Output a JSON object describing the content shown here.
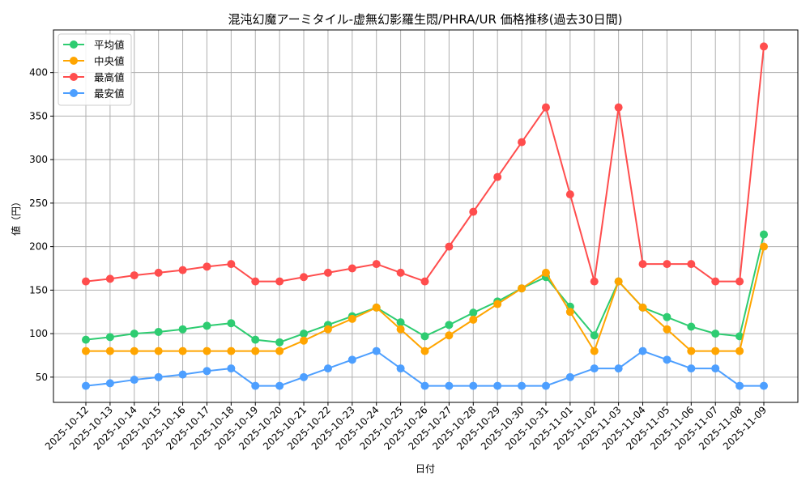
{
  "chart_data": {
    "type": "line",
    "title": "混沌幻魔アーミタイル-虚無幻影羅生悶/PHRA/UR 価格推移(過去30日間)",
    "xlabel": "日付",
    "ylabel": "値（円）",
    "ylim": [
      21,
      449
    ],
    "yticks": [
      50,
      100,
      150,
      200,
      250,
      300,
      350,
      400
    ],
    "grid": true,
    "legend_position": "upper left",
    "x": [
      "2025-10-12",
      "2025-10-13",
      "2025-10-14",
      "2025-10-15",
      "2025-10-16",
      "2025-10-17",
      "2025-10-18",
      "2025-10-19",
      "2025-10-20",
      "2025-10-21",
      "2025-10-22",
      "2025-10-23",
      "2025-10-24",
      "2025-10-25",
      "2025-10-26",
      "2025-10-27",
      "2025-10-28",
      "2025-10-29",
      "2025-10-30",
      "2025-10-31",
      "2025-11-01",
      "2025-11-02",
      "2025-11-03",
      "2025-11-04",
      "2025-11-05",
      "2025-11-06",
      "2025-11-07",
      "2025-11-08",
      "2025-11-09"
    ],
    "series": [
      {
        "name": "平均値",
        "color": "#2ecc71",
        "values": [
          93,
          96,
          100,
          102,
          105,
          109,
          112,
          93,
          90,
          100,
          110,
          120,
          130,
          113,
          97,
          110,
          124,
          137,
          152,
          165,
          131,
          98,
          160,
          130,
          119,
          108,
          100,
          97,
          214
        ]
      },
      {
        "name": "中央値",
        "color": "#ffa500",
        "values": [
          80,
          80,
          80,
          80,
          80,
          80,
          80,
          80,
          80,
          92,
          105,
          117,
          130,
          105,
          80,
          98,
          116,
          134,
          152,
          170,
          125,
          80,
          160,
          130,
          105,
          80,
          80,
          80,
          200
        ]
      },
      {
        "name": "最高値",
        "color": "#ff4d4d",
        "values": [
          160,
          163,
          167,
          170,
          173,
          177,
          180,
          160,
          160,
          165,
          170,
          175,
          180,
          170,
          160,
          200,
          240,
          280,
          320,
          360,
          260,
          160,
          360,
          180,
          180,
          180,
          160,
          160,
          430
        ]
      },
      {
        "name": "最安値",
        "color": "#4d9fff",
        "values": [
          40,
          43,
          47,
          50,
          53,
          57,
          60,
          40,
          40,
          50,
          60,
          70,
          80,
          60,
          40,
          40,
          40,
          40,
          40,
          40,
          50,
          60,
          60,
          80,
          70,
          60,
          60,
          40,
          40
        ]
      }
    ]
  }
}
